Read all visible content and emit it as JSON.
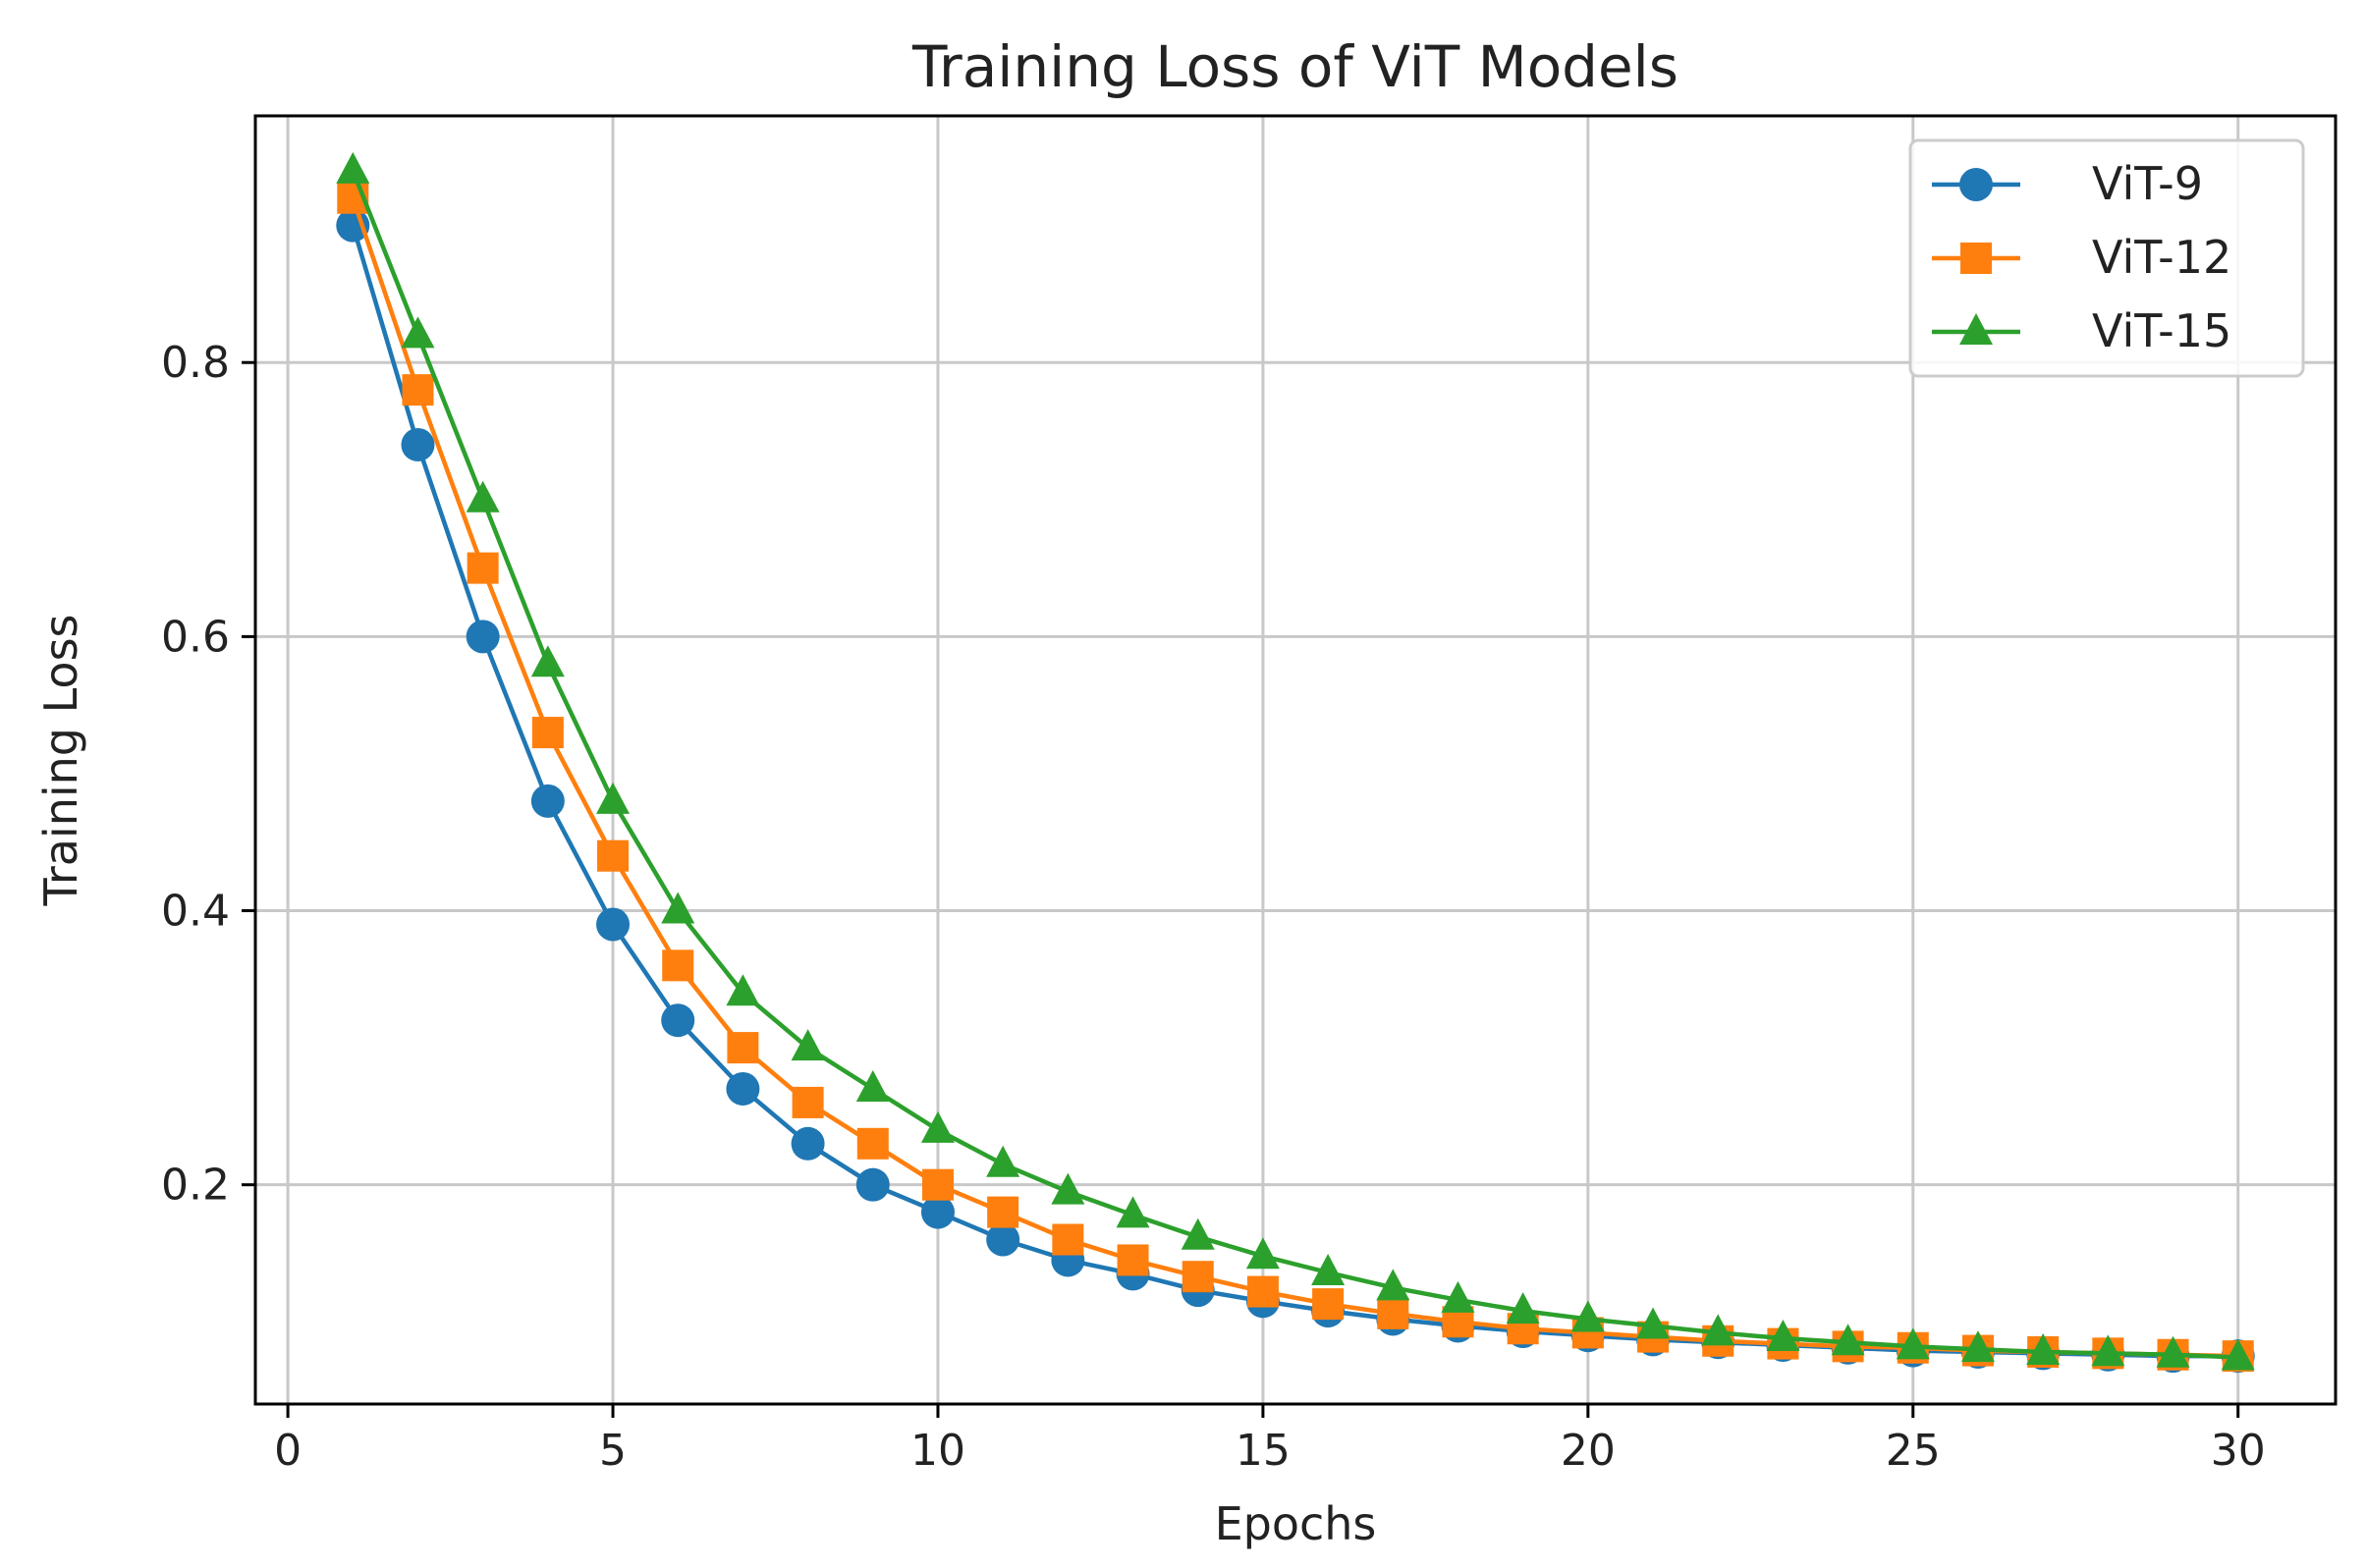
{
  "chart_data": {
    "type": "line",
    "title": "Training Loss of ViT Models",
    "xlabel": "Epochs",
    "ylabel": "Training Loss",
    "xlim": [
      -0.5,
      31.5
    ],
    "ylim": [
      0.04,
      0.98
    ],
    "xticks": [
      0,
      5,
      10,
      15,
      20,
      25,
      30
    ],
    "xtick_labels": [
      "0",
      "5",
      "10",
      "15",
      "20",
      "25",
      "30"
    ],
    "yticks": [
      0.2,
      0.4,
      0.6,
      0.8
    ],
    "ytick_labels": [
      "0.2",
      "0.4",
      "0.6",
      "0.8"
    ],
    "grid": true,
    "legend_position": "top-right",
    "x": [
      1,
      2,
      3,
      4,
      5,
      6,
      7,
      8,
      9,
      10,
      11,
      12,
      13,
      14,
      15,
      16,
      17,
      18,
      19,
      20,
      21,
      22,
      23,
      24,
      25,
      26,
      27,
      28,
      29,
      30
    ],
    "series": [
      {
        "name": "ViT-9",
        "color": "#1f77b4",
        "marker": "circle",
        "values": [
          0.9,
          0.74,
          0.6,
          0.48,
          0.39,
          0.32,
          0.27,
          0.23,
          0.2,
          0.18,
          0.16,
          0.145,
          0.135,
          0.123,
          0.115,
          0.108,
          0.102,
          0.097,
          0.093,
          0.09,
          0.087,
          0.085,
          0.083,
          0.081,
          0.079,
          0.078,
          0.077,
          0.076,
          0.075,
          0.075
        ]
      },
      {
        "name": "ViT-12",
        "color": "#ff7f0e",
        "marker": "square",
        "values": [
          0.92,
          0.78,
          0.65,
          0.53,
          0.44,
          0.36,
          0.3,
          0.26,
          0.23,
          0.2,
          0.18,
          0.16,
          0.145,
          0.133,
          0.122,
          0.113,
          0.106,
          0.1,
          0.095,
          0.092,
          0.089,
          0.086,
          0.084,
          0.082,
          0.081,
          0.079,
          0.078,
          0.077,
          0.076,
          0.075
        ]
      },
      {
        "name": "ViT-15",
        "color": "#2ca02c",
        "marker": "triangle",
        "values": [
          0.94,
          0.82,
          0.7,
          0.58,
          0.48,
          0.4,
          0.34,
          0.3,
          0.27,
          0.24,
          0.215,
          0.195,
          0.178,
          0.162,
          0.148,
          0.136,
          0.125,
          0.116,
          0.108,
          0.102,
          0.097,
          0.092,
          0.088,
          0.085,
          0.082,
          0.08,
          0.078,
          0.077,
          0.076,
          0.074
        ]
      }
    ]
  }
}
